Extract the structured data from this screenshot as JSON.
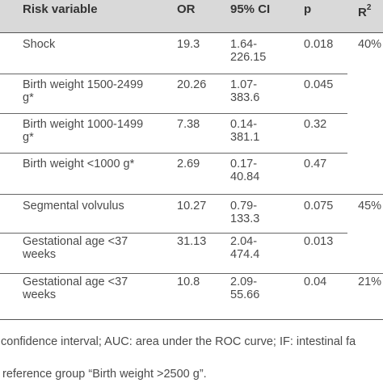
{
  "table": {
    "headers": {
      "risk_variable": "Risk variable",
      "or": "OR",
      "ci": "95% CI",
      "p": "p",
      "r2_base": "R",
      "r2_sup": "2"
    },
    "rows": [
      {
        "variable": "Shock",
        "or": "19.3",
        "ci": "1.64-\n226.15",
        "p": "0.018",
        "r2": "40%"
      },
      {
        "variable": "Birth weight 1500-2499\ng*",
        "or": "20.26",
        "ci": "1.07-\n383.6",
        "p": "0.045",
        "r2": ""
      },
      {
        "variable": "Birth weight 1000-1499\ng*",
        "or": "7.38",
        "ci": "0.14-\n381.1",
        "p": "0.32",
        "r2": ""
      },
      {
        "variable": "Birth weight <1000 g*",
        "or": "2.69",
        "ci": "0.17-\n40.84",
        "p": "0.47",
        "r2": ""
      },
      {
        "variable": "Segmental volvulus",
        "or": "10.27",
        "ci": "0.79-\n133.3",
        "p": "0.075",
        "r2": "45%"
      },
      {
        "variable": "Gestational age <37\nweeks",
        "or": "31.13",
        "ci": "2.04-\n474.4",
        "p": "0.013",
        "r2": ""
      },
      {
        "variable": "Gestational age <37\nweeks",
        "or": "10.8",
        "ci": "2.09-\n55.66",
        "p": "0.04",
        "r2": "21%"
      }
    ]
  },
  "footnotes": {
    "line1": "confidence interval; AUC: area under the ROC curve; IF: intestinal fa",
    "line2": "reference group “Birth weight >2500 g”."
  }
}
